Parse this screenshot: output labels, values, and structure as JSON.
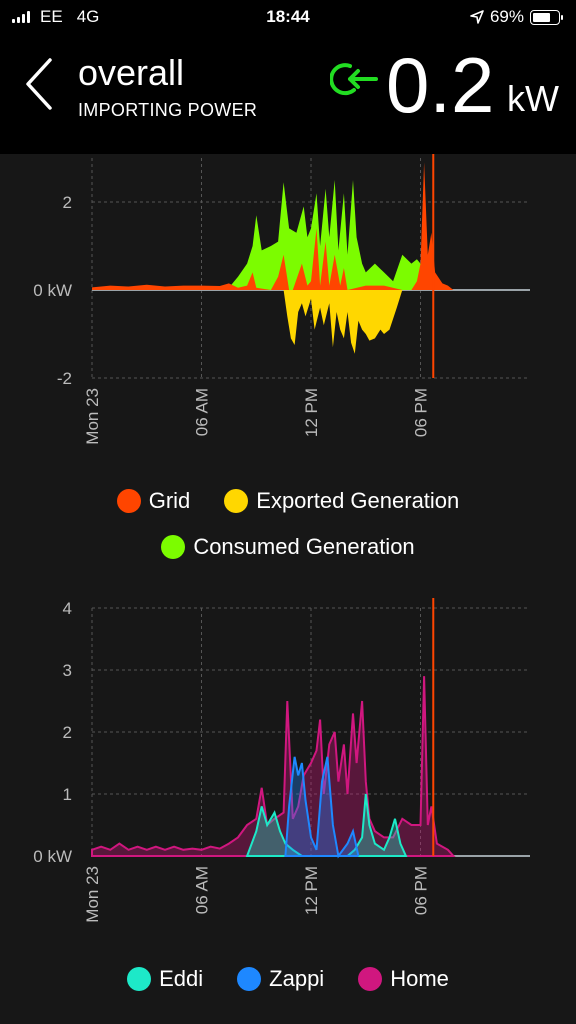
{
  "statusbar": {
    "carrier": "EE",
    "network": "4G",
    "time": "18:44",
    "battery": "69%",
    "battery_level": 0.69
  },
  "header": {
    "title": "overall",
    "subtitle": "IMPORTING POWER",
    "power_value": "0.2",
    "power_unit": "kW"
  },
  "colors": {
    "grid": "#ff4500",
    "exported": "#ffd700",
    "consumed": "#7cfc00",
    "eddi": "#1de9c8",
    "zappi": "#1e88ff",
    "home": "#d0177f",
    "now_line": "#ff4500",
    "import_icon": "#22dd22"
  },
  "legend1": [
    {
      "label": "Grid",
      "color": "#ff4500"
    },
    {
      "label": "Exported Generation",
      "color": "#ffd700"
    },
    {
      "label": "Consumed Generation",
      "color": "#7cfc00"
    }
  ],
  "legend2": [
    {
      "label": "Eddi",
      "color": "#1de9c8"
    },
    {
      "label": "Zappi",
      "color": "#1e88ff"
    },
    {
      "label": "Home",
      "color": "#d0177f"
    }
  ],
  "chart_data": [
    {
      "type": "area",
      "x_unit": "hour",
      "x_ticks": [
        {
          "x": 0,
          "label": "Mon 23"
        },
        {
          "x": 6,
          "label": "06 AM"
        },
        {
          "x": 12,
          "label": "12 PM"
        },
        {
          "x": 18,
          "label": "06 PM"
        }
      ],
      "y_ticks": [
        {
          "y": 2,
          "label": "2"
        },
        {
          "y": 0,
          "label": "0 kW"
        },
        {
          "y": -2,
          "label": "-2"
        }
      ],
      "ylim": [
        -2.0,
        3.0
      ],
      "xlim": [
        0,
        24
      ],
      "now_hour": 18.7,
      "series": [
        {
          "name": "Consumed Generation",
          "points": [
            [
              7.5,
              0.05
            ],
            [
              8,
              0.3
            ],
            [
              8.5,
              0.6
            ],
            [
              8.8,
              1.0
            ],
            [
              9,
              1.7
            ],
            [
              9.3,
              0.9
            ],
            [
              9.8,
              1.0
            ],
            [
              10.2,
              1.1
            ],
            [
              10.5,
              2.45
            ],
            [
              10.8,
              1.4
            ],
            [
              11.2,
              1.3
            ],
            [
              11.6,
              1.9
            ],
            [
              11.8,
              1.2
            ],
            [
              12,
              1.4
            ],
            [
              12.3,
              2.2
            ],
            [
              12.5,
              1.0
            ],
            [
              12.8,
              2.3
            ],
            [
              13,
              1.2
            ],
            [
              13.3,
              2.5
            ],
            [
              13.5,
              0.9
            ],
            [
              13.8,
              2.2
            ],
            [
              14,
              0.8
            ],
            [
              14.3,
              2.5
            ],
            [
              14.5,
              1.2
            ],
            [
              14.8,
              0.6
            ],
            [
              15,
              0.4
            ],
            [
              15.5,
              0.6
            ],
            [
              16,
              0.4
            ],
            [
              16.5,
              0.2
            ],
            [
              17,
              0.8
            ],
            [
              17.5,
              0.6
            ],
            [
              17.8,
              0.7
            ],
            [
              18,
              0.6
            ],
            [
              18.2,
              0.0
            ]
          ]
        },
        {
          "name": "Grid",
          "points": [
            [
              0,
              0.06
            ],
            [
              1,
              0.1
            ],
            [
              2,
              0.08
            ],
            [
              3,
              0.12
            ],
            [
              4,
              0.08
            ],
            [
              5,
              0.1
            ],
            [
              6,
              0.1
            ],
            [
              7,
              0.09
            ],
            [
              7.5,
              0.15
            ],
            [
              8,
              0.05
            ],
            [
              8.5,
              0.1
            ],
            [
              8.8,
              0.4
            ],
            [
              9,
              0.05
            ],
            [
              9.8,
              0.0
            ],
            [
              10.2,
              0.3
            ],
            [
              10.5,
              0.8
            ],
            [
              10.8,
              0.0
            ],
            [
              11,
              0.0
            ],
            [
              11.5,
              0.6
            ],
            [
              11.8,
              0.1
            ],
            [
              12,
              0.2
            ],
            [
              12.3,
              1.4
            ],
            [
              12.5,
              0.1
            ],
            [
              12.8,
              1.1
            ],
            [
              13,
              0.1
            ],
            [
              13.3,
              0.8
            ],
            [
              13.6,
              0.1
            ],
            [
              13.8,
              0.5
            ],
            [
              14,
              0.0
            ],
            [
              15,
              0.1
            ],
            [
              16,
              0.1
            ],
            [
              17,
              0.0
            ],
            [
              17.5,
              0.0
            ],
            [
              17.8,
              0.2
            ],
            [
              18,
              0.6
            ],
            [
              18.2,
              2.9
            ],
            [
              18.4,
              0.8
            ],
            [
              18.6,
              1.3
            ],
            [
              18.8,
              0.4
            ],
            [
              19.2,
              0.15
            ],
            [
              19.5,
              0.1
            ],
            [
              19.8,
              0.0
            ]
          ]
        },
        {
          "name": "Exported Generation",
          "points": [
            [
              10.5,
              0.0
            ],
            [
              10.7,
              -0.6
            ],
            [
              10.9,
              -1.1
            ],
            [
              11.1,
              -1.25
            ],
            [
              11.3,
              -0.5
            ],
            [
              11.5,
              -0.3
            ],
            [
              11.7,
              -0.6
            ],
            [
              12,
              -0.2
            ],
            [
              12.2,
              -0.9
            ],
            [
              12.5,
              -0.4
            ],
            [
              12.7,
              -0.8
            ],
            [
              13,
              -0.3
            ],
            [
              13.2,
              -1.3
            ],
            [
              13.4,
              -0.5
            ],
            [
              13.6,
              -0.9
            ],
            [
              13.8,
              -1.1
            ],
            [
              14,
              -0.5
            ],
            [
              14.2,
              -1.2
            ],
            [
              14.4,
              -1.45
            ],
            [
              14.6,
              -0.7
            ],
            [
              14.8,
              -0.9
            ],
            [
              15,
              -1.0
            ],
            [
              15.2,
              -1.15
            ],
            [
              15.5,
              -1.1
            ],
            [
              15.8,
              -0.9
            ],
            [
              16,
              -1.0
            ],
            [
              16.3,
              -0.9
            ],
            [
              16.7,
              -0.4
            ],
            [
              17,
              0.0
            ]
          ]
        }
      ]
    },
    {
      "type": "area",
      "x_unit": "hour",
      "x_ticks": [
        {
          "x": 0,
          "label": "Mon 23"
        },
        {
          "x": 6,
          "label": "06 AM"
        },
        {
          "x": 12,
          "label": "12 PM"
        },
        {
          "x": 18,
          "label": "06 PM"
        }
      ],
      "y_ticks": [
        {
          "y": 4,
          "label": "4"
        },
        {
          "y": 3,
          "label": "3"
        },
        {
          "y": 2,
          "label": "2"
        },
        {
          "y": 1,
          "label": "1"
        },
        {
          "y": 0,
          "label": "0 kW"
        }
      ],
      "ylim": [
        0,
        4
      ],
      "xlim": [
        0,
        24
      ],
      "now_hour": 18.7,
      "series": [
        {
          "name": "Home",
          "points": [
            [
              0,
              0.1
            ],
            [
              0.5,
              0.15
            ],
            [
              1,
              0.1
            ],
            [
              1.5,
              0.2
            ],
            [
              2,
              0.1
            ],
            [
              2.5,
              0.15
            ],
            [
              3,
              0.1
            ],
            [
              3.5,
              0.15
            ],
            [
              4,
              0.1
            ],
            [
              4.5,
              0.15
            ],
            [
              5,
              0.1
            ],
            [
              5.5,
              0.12
            ],
            [
              6,
              0.1
            ],
            [
              6.5,
              0.15
            ],
            [
              7,
              0.12
            ],
            [
              7.5,
              0.2
            ],
            [
              8,
              0.3
            ],
            [
              8.5,
              0.5
            ],
            [
              9,
              0.6
            ],
            [
              9.3,
              1.1
            ],
            [
              9.6,
              0.5
            ],
            [
              10,
              0.6
            ],
            [
              10.5,
              0.7
            ],
            [
              10.7,
              2.5
            ],
            [
              11,
              0.6
            ],
            [
              11.3,
              0.8
            ],
            [
              11.6,
              1.3
            ],
            [
              12,
              1.5
            ],
            [
              12.3,
              1.7
            ],
            [
              12.5,
              2.2
            ],
            [
              12.7,
              1.0
            ],
            [
              13,
              1.8
            ],
            [
              13.3,
              2.0
            ],
            [
              13.5,
              1.2
            ],
            [
              13.8,
              1.8
            ],
            [
              14,
              1.0
            ],
            [
              14.3,
              2.3
            ],
            [
              14.5,
              1.5
            ],
            [
              14.8,
              2.5
            ],
            [
              15,
              1.2
            ],
            [
              15.2,
              0.6
            ],
            [
              15.5,
              0.4
            ],
            [
              16,
              0.3
            ],
            [
              16.5,
              0.3
            ],
            [
              17,
              0.6
            ],
            [
              17.5,
              0.5
            ],
            [
              18,
              0.5
            ],
            [
              18.2,
              2.9
            ],
            [
              18.4,
              0.5
            ],
            [
              18.6,
              0.8
            ],
            [
              18.9,
              0.2
            ],
            [
              19.5,
              0.1
            ],
            [
              19.8,
              0.0
            ]
          ]
        },
        {
          "name": "Eddi",
          "points": [
            [
              8.5,
              0.0
            ],
            [
              9,
              0.4
            ],
            [
              9.3,
              0.8
            ],
            [
              9.6,
              0.5
            ],
            [
              10,
              0.7
            ],
            [
              10.3,
              0.4
            ],
            [
              10.6,
              0.2
            ],
            [
              11,
              0.1
            ],
            [
              11.5,
              0.0
            ],
            [
              12,
              0.0
            ],
            [
              12.5,
              0.0
            ],
            [
              13,
              0.0
            ],
            [
              13.5,
              0.0
            ],
            [
              14,
              0.0
            ],
            [
              14.4,
              0.1
            ],
            [
              14.8,
              0.3
            ],
            [
              15,
              1.0
            ],
            [
              15.2,
              0.5
            ],
            [
              15.5,
              0.2
            ],
            [
              16,
              0.1
            ],
            [
              16.3,
              0.3
            ],
            [
              16.6,
              0.6
            ],
            [
              16.9,
              0.2
            ],
            [
              17.2,
              0.0
            ]
          ]
        },
        {
          "name": "Zappi",
          "points": [
            [
              10.6,
              0.0
            ],
            [
              10.8,
              0.8
            ],
            [
              11.1,
              1.6
            ],
            [
              11.3,
              1.3
            ],
            [
              11.5,
              1.5
            ],
            [
              11.7,
              0.9
            ],
            [
              12,
              0.3
            ],
            [
              12.3,
              0.1
            ],
            [
              12.6,
              1.2
            ],
            [
              12.9,
              1.6
            ],
            [
              13.2,
              0.5
            ],
            [
              13.5,
              0.0
            ],
            [
              14,
              0.2
            ],
            [
              14.3,
              0.4
            ],
            [
              14.6,
              0.0
            ]
          ]
        }
      ]
    }
  ]
}
